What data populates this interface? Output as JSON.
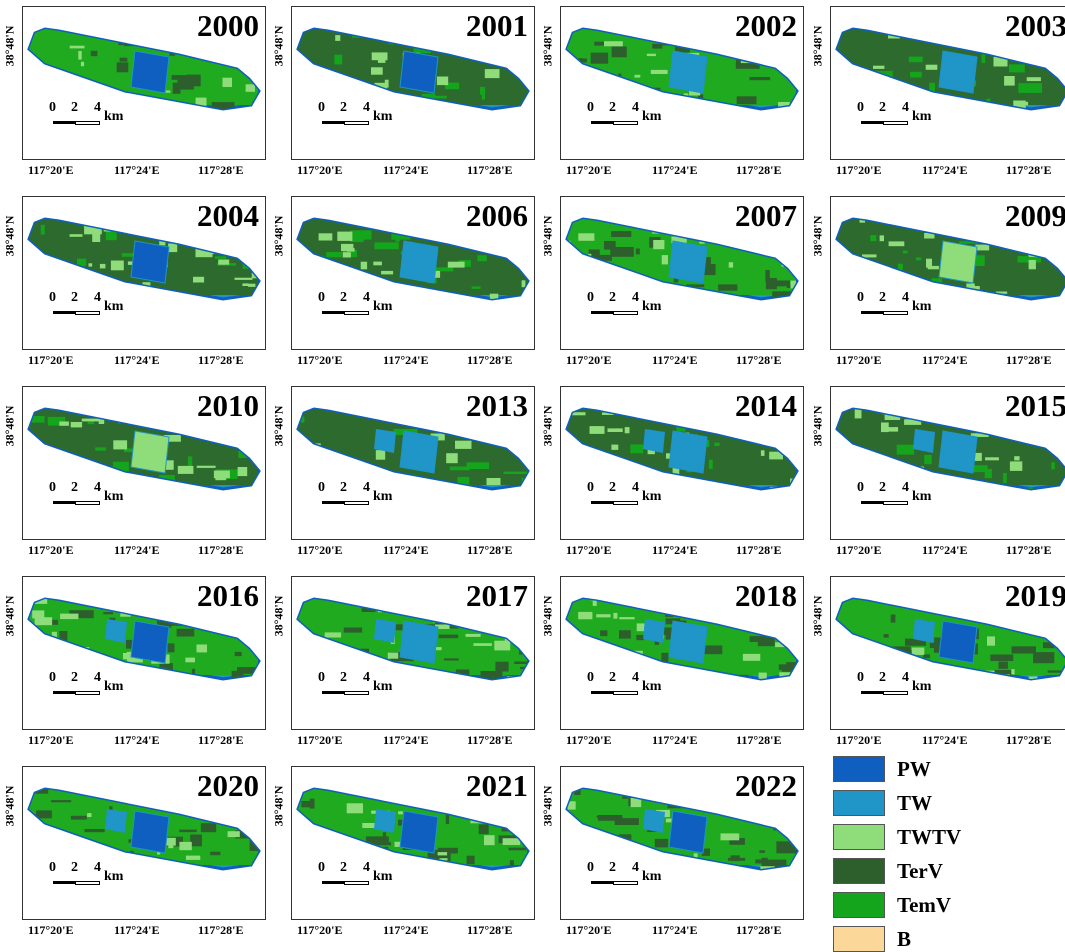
{
  "panels": [
    {
      "year": "2000",
      "base": "#1faa1f",
      "dark": 0.25,
      "light": 0.12,
      "water": "pw"
    },
    {
      "year": "2001",
      "base": "#2d6a2d",
      "dark": 0.2,
      "light": 0.08,
      "water": "pw"
    },
    {
      "year": "2002",
      "base": "#1faa1f",
      "dark": 0.3,
      "light": 0.15,
      "water": "tw"
    },
    {
      "year": "2003",
      "base": "#2d6a2d",
      "dark": 0.15,
      "light": 0.25,
      "water": "tw"
    },
    {
      "year": "2004",
      "base": "#2d6a2d",
      "dark": 0.1,
      "light": 0.3,
      "water": "pw"
    },
    {
      "year": "2006",
      "base": "#2d6a2d",
      "dark": 0.1,
      "light": 0.25,
      "water": "tw"
    },
    {
      "year": "2007",
      "base": "#1faa1f",
      "dark": 0.4,
      "light": 0.12,
      "water": "tw"
    },
    {
      "year": "2009",
      "base": "#2d6a2d",
      "dark": 0.1,
      "light": 0.35,
      "water": "twtv"
    },
    {
      "year": "2010",
      "base": "#2d6a2d",
      "dark": 0.1,
      "light": 0.3,
      "water": "twtv"
    },
    {
      "year": "2013",
      "base": "#2d6a2d",
      "dark": 0.05,
      "light": 0.12,
      "water": "tw"
    },
    {
      "year": "2014",
      "base": "#2d6a2d",
      "dark": 0.1,
      "light": 0.3,
      "water": "tw"
    },
    {
      "year": "2015",
      "base": "#2d6a2d",
      "dark": 0.1,
      "light": 0.3,
      "water": "tw"
    },
    {
      "year": "2016",
      "base": "#1faa1f",
      "dark": 0.3,
      "light": 0.2,
      "water": "pw"
    },
    {
      "year": "2017",
      "base": "#1faa1f",
      "dark": 0.35,
      "light": 0.15,
      "water": "tw"
    },
    {
      "year": "2018",
      "base": "#1faa1f",
      "dark": 0.4,
      "light": 0.12,
      "water": "tw"
    },
    {
      "year": "2019",
      "base": "#1faa1f",
      "dark": 0.4,
      "light": 0.1,
      "water": "pw"
    },
    {
      "year": "2020",
      "base": "#1faa1f",
      "dark": 0.3,
      "light": 0.12,
      "water": "pw"
    },
    {
      "year": "2021",
      "base": "#1faa1f",
      "dark": 0.35,
      "light": 0.15,
      "water": "pw"
    },
    {
      "year": "2022",
      "base": "#1faa1f",
      "dark": 0.4,
      "light": 0.12,
      "water": "pw"
    }
  ],
  "axes": {
    "lat_label": "38°48'N",
    "lon_labels": [
      "117°20'E",
      "117°24'E",
      "117°28'E"
    ]
  },
  "scale": {
    "ticks": [
      "0",
      "2",
      "4"
    ],
    "unit": "km"
  },
  "legend": [
    {
      "label": "PW",
      "color": "#0e5fbf"
    },
    {
      "label": "TW",
      "color": "#1f95c8"
    },
    {
      "label": "TWTV",
      "color": "#8fdc7a"
    },
    {
      "label": "TerV",
      "color": "#2d5f2d"
    },
    {
      "label": "TemV",
      "color": "#14a51c"
    },
    {
      "label": "B",
      "color": "#fbd89a"
    }
  ]
}
